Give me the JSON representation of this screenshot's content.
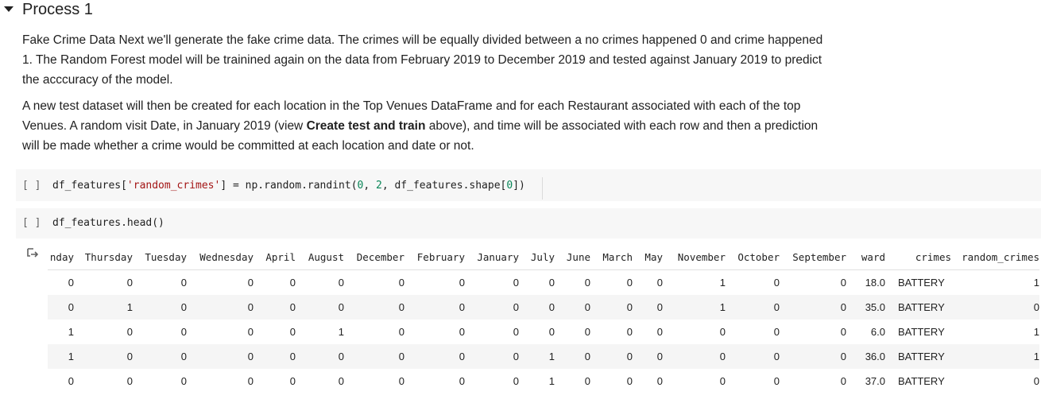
{
  "section": {
    "title": "Process 1"
  },
  "paragraph1": "Fake Crime Data Next we'll generate the fake crime data. The crimes will be equally divided between a no crimes happened 0 and crime happened 1. The Random Forest model will be trainined again on the data from February 2019 to December 2019 and tested against January 2019 to predict the acccuracy of the model.",
  "paragraph2": {
    "before": "A new test dataset will then be created for each location in the Top Venues DataFrame and for each Restaurant associated with each of the top Venues. A random visit Date, in January 2019 (view ",
    "bold": "Create test and train",
    "after": " above), and time will be associated with each row and then a prediction will be made whether a crime would be committed at each location and date or not."
  },
  "cells": [
    {
      "run_label": "[ ]",
      "code": {
        "a": "df_features[",
        "s": "'random_crimes'",
        "b": "] = np.random.randint(",
        "n1": "0",
        "c": ", ",
        "n2": "2",
        "d": ", df_features.shape[",
        "n3": "0",
        "e": "])"
      }
    },
    {
      "run_label": "[ ]",
      "code_text": "df_features.head()"
    }
  ],
  "output": {
    "icon": "output-arrow-icon",
    "columns": [
      "nday",
      "Thursday",
      "Tuesday",
      "Wednesday",
      "April",
      "August",
      "December",
      "February",
      "January",
      "July",
      "June",
      "March",
      "May",
      "November",
      "October",
      "September",
      "ward",
      "crimes",
      "random_crimes"
    ],
    "rows": [
      [
        "0",
        "0",
        "0",
        "0",
        "0",
        "0",
        "0",
        "0",
        "0",
        "0",
        "0",
        "0",
        "0",
        "1",
        "0",
        "0",
        "18.0",
        "BATTERY",
        "1"
      ],
      [
        "0",
        "1",
        "0",
        "0",
        "0",
        "0",
        "0",
        "0",
        "0",
        "0",
        "0",
        "0",
        "0",
        "1",
        "0",
        "0",
        "35.0",
        "BATTERY",
        "0"
      ],
      [
        "1",
        "0",
        "0",
        "0",
        "0",
        "1",
        "0",
        "0",
        "0",
        "0",
        "0",
        "0",
        "0",
        "0",
        "0",
        "0",
        "6.0",
        "BATTERY",
        "1"
      ],
      [
        "1",
        "0",
        "0",
        "0",
        "0",
        "0",
        "0",
        "0",
        "0",
        "1",
        "0",
        "0",
        "0",
        "0",
        "0",
        "0",
        "36.0",
        "BATTERY",
        "1"
      ],
      [
        "0",
        "0",
        "0",
        "0",
        "0",
        "0",
        "0",
        "0",
        "0",
        "1",
        "0",
        "0",
        "0",
        "0",
        "0",
        "0",
        "37.0",
        "BATTERY",
        "0"
      ]
    ]
  }
}
